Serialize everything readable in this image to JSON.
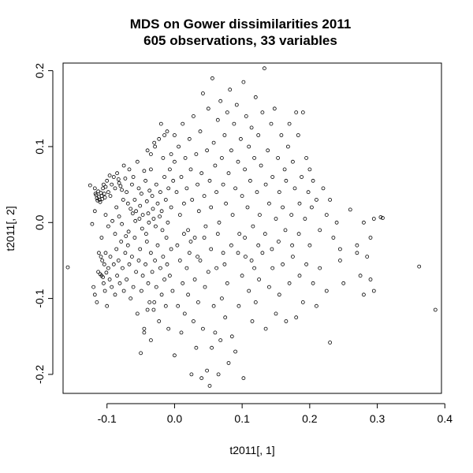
{
  "chart_data": {
    "type": "scatter",
    "title": "MDS on Gower dissimilarities 2011",
    "subtitle": "605 observations, 33 variables",
    "xlabel": "t2011[, 1]",
    "ylabel": "t2011[, 2]",
    "xlim": [
      -0.165,
      0.395
    ],
    "ylim": [
      -0.225,
      0.21
    ],
    "xticks": [
      -0.1,
      0.0,
      0.1,
      0.2,
      0.3,
      0.4
    ],
    "xtick_labels": [
      "-0.1",
      "0.0",
      "0.1",
      "0.2",
      "0.3",
      "0.4"
    ],
    "yticks": [
      -0.2,
      -0.1,
      0.0,
      0.1,
      0.2
    ],
    "ytick_labels": [
      "-0.2",
      "-0.1",
      "0.0",
      "0.1",
      "0.2"
    ],
    "grid": false,
    "legend": "none",
    "points": [
      [
        -0.158,
        -0.059
      ],
      [
        -0.125,
        0.049
      ],
      [
        -0.122,
        -0.002
      ],
      [
        -0.118,
        0.045
      ],
      [
        -0.117,
        0.038
      ],
      [
        -0.116,
        0.036
      ],
      [
        -0.115,
        0.032
      ],
      [
        -0.114,
        0.029
      ],
      [
        -0.113,
        0.041
      ],
      [
        -0.112,
        0.034
      ],
      [
        -0.111,
        0.03
      ],
      [
        -0.11,
        0.027
      ],
      [
        -0.109,
        0.039
      ],
      [
        -0.108,
        0.035
      ],
      [
        -0.107,
        0.031
      ],
      [
        -0.106,
        0.045
      ],
      [
        -0.105,
        0.05
      ],
      [
        -0.104,
        0.038
      ],
      [
        -0.103,
        0.033
      ],
      [
        -0.102,
        0.047
      ],
      [
        -0.1,
        0.055
      ],
      [
        -0.098,
        0.04
      ],
      [
        -0.096,
        0.062
      ],
      [
        -0.095,
        0.035
      ],
      [
        -0.093,
        0.05
      ],
      [
        -0.09,
        0.06
      ],
      [
        -0.088,
        0.045
      ],
      [
        -0.086,
        0.02
      ],
      [
        -0.085,
        0.065
      ],
      [
        -0.083,
        0.057
      ],
      [
        -0.082,
        0.052
      ],
      [
        -0.08,
        0.048
      ],
      [
        -0.078,
        0.043
      ],
      [
        -0.076,
        0.03
      ],
      [
        -0.075,
        0.075
      ],
      [
        -0.073,
        0.058
      ],
      [
        -0.071,
        0.04
      ],
      [
        -0.069,
        0.025
      ],
      [
        -0.067,
        0.07
      ],
      [
        -0.065,
        0.018
      ],
      [
        -0.063,
        0.05
      ],
      [
        -0.061,
        0.06
      ],
      [
        -0.059,
        0.03
      ],
      [
        -0.057,
        0.015
      ],
      [
        -0.055,
        0.08
      ],
      [
        -0.053,
        0.045
      ],
      [
        -0.051,
        0.022
      ],
      [
        -0.049,
        0.038
      ],
      [
        -0.047,
        0.01
      ],
      [
        -0.045,
        0.068
      ],
      [
        -0.043,
        0.055
      ],
      [
        -0.041,
        0.028
      ],
      [
        -0.039,
        0.012
      ],
      [
        -0.037,
        0.042
      ],
      [
        -0.035,
        0.09
      ],
      [
        -0.033,
        0.035
      ],
      [
        -0.031,
        0.005
      ],
      [
        -0.029,
        0.1
      ],
      [
        -0.027,
        0.05
      ],
      [
        -0.025,
        0.025
      ],
      [
        -0.023,
        0.11
      ],
      [
        -0.021,
        0.04
      ],
      [
        -0.019,
        0.015
      ],
      [
        -0.017,
        0.085
      ],
      [
        -0.015,
        0.06
      ],
      [
        -0.013,
        0.03
      ],
      [
        -0.011,
        0.12
      ],
      [
        -0.009,
        0.045
      ],
      [
        -0.007,
        0.07
      ],
      [
        -0.005,
        0.02
      ],
      [
        -0.12,
        -0.085
      ],
      [
        -0.118,
        -0.095
      ],
      [
        -0.115,
        -0.105
      ],
      [
        -0.113,
        -0.065
      ],
      [
        -0.112,
        -0.04
      ],
      [
        -0.11,
        -0.068
      ],
      [
        -0.109,
        -0.045
      ],
      [
        -0.108,
        -0.07
      ],
      [
        -0.107,
        -0.05
      ],
      [
        -0.106,
        -0.072
      ],
      [
        -0.105,
        -0.08
      ],
      [
        -0.104,
        -0.055
      ],
      [
        -0.103,
        -0.09
      ],
      [
        -0.102,
        -0.04
      ],
      [
        -0.101,
        -0.066
      ],
      [
        -0.1,
        -0.11
      ],
      [
        -0.098,
        -0.06
      ],
      [
        -0.096,
        -0.075
      ],
      [
        -0.095,
        -0.045
      ],
      [
        -0.093,
        -0.085
      ],
      [
        -0.09,
        -0.055
      ],
      [
        -0.088,
        -0.095
      ],
      [
        -0.086,
        -0.035
      ],
      [
        -0.085,
        -0.07
      ],
      [
        -0.083,
        -0.05
      ],
      [
        -0.081,
        -0.08
      ],
      [
        -0.079,
        -0.025
      ],
      [
        -0.077,
        -0.06
      ],
      [
        -0.075,
        -0.09
      ],
      [
        -0.073,
        -0.04
      ],
      [
        -0.071,
        -0.075
      ],
      [
        -0.069,
        -0.03
      ],
      [
        -0.067,
        -0.055
      ],
      [
        -0.065,
        -0.1
      ],
      [
        -0.063,
        -0.045
      ],
      [
        -0.061,
        -0.085
      ],
      [
        -0.059,
        -0.02
      ],
      [
        -0.057,
        -0.065
      ],
      [
        -0.055,
        -0.12
      ],
      [
        -0.053,
        -0.05
      ],
      [
        -0.051,
        -0.035
      ],
      [
        -0.049,
        -0.09
      ],
      [
        -0.047,
        -0.07
      ],
      [
        -0.045,
        -0.145
      ],
      [
        -0.043,
        -0.055
      ],
      [
        -0.041,
        -0.025
      ],
      [
        -0.039,
        -0.08
      ],
      [
        -0.037,
        -0.105
      ],
      [
        -0.035,
        -0.04
      ],
      [
        -0.033,
        -0.065
      ],
      [
        -0.031,
        -0.115
      ],
      [
        -0.029,
        -0.05
      ],
      [
        -0.027,
        -0.085
      ],
      [
        -0.025,
        -0.03
      ],
      [
        -0.023,
        -0.13
      ],
      [
        -0.021,
        -0.06
      ],
      [
        -0.019,
        -0.095
      ],
      [
        -0.017,
        -0.045
      ],
      [
        -0.015,
        -0.075
      ],
      [
        -0.013,
        -0.11
      ],
      [
        -0.011,
        -0.055
      ],
      [
        -0.009,
        -0.14
      ],
      [
        -0.007,
        -0.07
      ],
      [
        -0.005,
        -0.035
      ],
      [
        -0.003,
        -0.09
      ],
      [
        -0.05,
        -0.172
      ],
      [
        -0.045,
        -0.14
      ],
      [
        -0.04,
        -0.115
      ],
      [
        -0.035,
        -0.155
      ],
      [
        -0.03,
        -0.105
      ],
      [
        0.0,
        -0.175
      ],
      [
        0.005,
        -0.11
      ],
      [
        0.01,
        -0.145
      ],
      [
        0.012,
        -0.08
      ],
      [
        0.015,
        -0.12
      ],
      [
        0.018,
        -0.06
      ],
      [
        0.02,
        -0.095
      ],
      [
        0.022,
        -0.04
      ],
      [
        0.025,
        -0.2
      ],
      [
        0.028,
        -0.13
      ],
      [
        0.03,
        -0.075
      ],
      [
        0.032,
        -0.165
      ],
      [
        0.035,
        -0.105
      ],
      [
        0.038,
        -0.05
      ],
      [
        0.04,
        -0.205
      ],
      [
        0.042,
        -0.14
      ],
      [
        0.045,
        -0.085
      ],
      [
        0.048,
        -0.195
      ],
      [
        0.05,
        -0.065
      ],
      [
        0.052,
        -0.215
      ],
      [
        0.055,
        -0.165
      ],
      [
        0.058,
        -0.11
      ],
      [
        0.06,
        -0.145
      ],
      [
        0.062,
        -0.06
      ],
      [
        0.065,
        -0.2
      ],
      [
        0.068,
        -0.155
      ],
      [
        0.07,
        -0.1
      ],
      [
        0.072,
        -0.04
      ],
      [
        0.075,
        -0.125
      ],
      [
        0.078,
        -0.08
      ],
      [
        0.08,
        -0.185
      ],
      [
        0.085,
        -0.15
      ],
      [
        0.09,
        -0.17
      ],
      [
        0.095,
        -0.11
      ],
      [
        0.1,
        -0.07
      ],
      [
        0.102,
        -0.205
      ],
      [
        0.105,
        -0.045
      ],
      [
        0.11,
        -0.09
      ],
      [
        0.115,
        -0.13
      ],
      [
        0.118,
        -0.06
      ],
      [
        0.12,
        -0.105
      ],
      [
        0.125,
        -0.075
      ],
      [
        0.13,
        -0.04
      ],
      [
        0.135,
        -0.14
      ],
      [
        0.14,
        -0.085
      ],
      [
        0.145,
        -0.06
      ],
      [
        0.15,
        -0.12
      ],
      [
        0.155,
        -0.095
      ],
      [
        0.16,
        -0.055
      ],
      [
        0.165,
        -0.13
      ],
      [
        0.17,
        -0.08
      ],
      [
        0.175,
        -0.045
      ],
      [
        0.18,
        -0.125
      ],
      [
        0.185,
        -0.07
      ],
      [
        0.19,
        -0.105
      ],
      [
        0.195,
        -0.055
      ],
      [
        0.2,
        -0.03
      ],
      [
        0.205,
        -0.08
      ],
      [
        0.21,
        -0.11
      ],
      [
        0.215,
        -0.06
      ],
      [
        0.225,
        -0.09
      ],
      [
        0.23,
        -0.158
      ],
      [
        0.245,
        -0.05
      ],
      [
        0.25,
        -0.08
      ],
      [
        0.27,
        -0.04
      ],
      [
        0.275,
        -0.07
      ],
      [
        0.28,
        -0.095
      ],
      [
        0.285,
        -0.045
      ],
      [
        0.29,
        -0.075
      ],
      [
        0.295,
        -0.09
      ],
      [
        0.362,
        -0.058
      ],
      [
        0.386,
        -0.115
      ],
      [
        0.0,
        0.08
      ],
      [
        0.003,
        0.04
      ],
      [
        0.006,
        0.1
      ],
      [
        0.008,
        0.01
      ],
      [
        0.01,
        0.06
      ],
      [
        0.012,
        0.13
      ],
      [
        0.014,
        0.025
      ],
      [
        0.016,
        0.085
      ],
      [
        0.018,
        0.045
      ],
      [
        0.02,
        -0.01
      ],
      [
        0.022,
        0.11
      ],
      [
        0.024,
        0.07
      ],
      [
        0.026,
        0.03
      ],
      [
        0.028,
        0.14
      ],
      [
        0.03,
        -0.02
      ],
      [
        0.032,
        0.09
      ],
      [
        0.034,
        0.05
      ],
      [
        0.036,
        0.015
      ],
      [
        0.038,
        0.12
      ],
      [
        0.04,
        0.065
      ],
      [
        0.042,
        0.17
      ],
      [
        0.044,
        0.035
      ],
      [
        0.046,
        -0.005
      ],
      [
        0.048,
        0.095
      ],
      [
        0.05,
        0.15
      ],
      [
        0.052,
        0.055
      ],
      [
        0.054,
        0.02
      ],
      [
        0.056,
        0.19
      ],
      [
        0.058,
        0.105
      ],
      [
        0.06,
        0.075
      ],
      [
        0.062,
        0.04
      ],
      [
        0.064,
        0.135
      ],
      [
        0.066,
        0.0
      ],
      [
        0.068,
        0.16
      ],
      [
        0.07,
        0.085
      ],
      [
        0.072,
        0.05
      ],
      [
        0.074,
        0.115
      ],
      [
        0.076,
        0.025
      ],
      [
        0.078,
        0.145
      ],
      [
        0.08,
        0.065
      ],
      [
        0.082,
        0.175
      ],
      [
        0.084,
        0.095
      ],
      [
        0.086,
        0.01
      ],
      [
        0.088,
        0.13
      ],
      [
        0.09,
        0.045
      ],
      [
        0.092,
        0.155
      ],
      [
        0.094,
        0.08
      ],
      [
        0.096,
        -0.015
      ],
      [
        0.098,
        0.11
      ],
      [
        0.1,
        0.035
      ],
      [
        0.102,
        0.185
      ],
      [
        0.104,
        0.07
      ],
      [
        0.106,
        0.14
      ],
      [
        0.108,
        0.02
      ],
      [
        0.11,
        0.1
      ],
      [
        0.112,
        0.055
      ],
      [
        0.114,
        0.125
      ],
      [
        0.116,
        -0.005
      ],
      [
        0.118,
        0.085
      ],
      [
        0.12,
        0.165
      ],
      [
        0.122,
        0.04
      ],
      [
        0.124,
        0.115
      ],
      [
        0.126,
        0.01
      ],
      [
        0.128,
        0.075
      ],
      [
        0.13,
        0.145
      ],
      [
        0.133,
        0.203
      ],
      [
        0.135,
        0.05
      ],
      [
        0.138,
        0.095
      ],
      [
        0.14,
        0.025
      ],
      [
        0.143,
        0.13
      ],
      [
        0.145,
        0.06
      ],
      [
        0.148,
        0.15
      ],
      [
        0.15,
        0.005
      ],
      [
        0.153,
        0.085
      ],
      [
        0.155,
        0.04
      ],
      [
        0.158,
        0.115
      ],
      [
        0.16,
        0.02
      ],
      [
        0.163,
        0.07
      ],
      [
        0.165,
        0.055
      ],
      [
        0.168,
        0.1
      ],
      [
        0.17,
        0.13
      ],
      [
        0.173,
        0.01
      ],
      [
        0.175,
        0.08
      ],
      [
        0.178,
        0.045
      ],
      [
        0.18,
        0.145
      ],
      [
        0.183,
        0.115
      ],
      [
        0.185,
        0.025
      ],
      [
        0.188,
        0.06
      ],
      [
        0.19,
        0.145
      ],
      [
        0.193,
        0.005
      ],
      [
        0.195,
        0.085
      ],
      [
        0.198,
        0.04
      ],
      [
        0.2,
        0.07
      ],
      [
        0.203,
        0.02
      ],
      [
        0.205,
        0.055
      ],
      [
        0.21,
        0.03
      ],
      [
        0.215,
        -0.01
      ],
      [
        0.22,
        0.045
      ],
      [
        0.225,
        0.01
      ],
      [
        0.23,
        0.03
      ],
      [
        0.235,
        -0.02
      ],
      [
        0.24,
        0.0
      ],
      [
        0.245,
        -0.035
      ],
      [
        0.26,
        0.017
      ],
      [
        0.27,
        -0.03
      ],
      [
        0.28,
        0.0
      ],
      [
        0.29,
        -0.02
      ],
      [
        0.295,
        0.005
      ],
      [
        0.305,
        0.007
      ],
      [
        0.308,
        0.006
      ],
      [
        -0.04,
        0.095
      ],
      [
        -0.035,
        0.07
      ],
      [
        -0.03,
        0.105
      ],
      [
        -0.02,
        0.13
      ],
      [
        -0.015,
        0.115
      ],
      [
        -0.01,
        0.0
      ],
      [
        -0.005,
        0.09
      ],
      [
        0.0,
        0.115
      ],
      [
        -0.002,
        0.055
      ],
      [
        -0.018,
        -0.01
      ],
      [
        -0.028,
        -0.005
      ],
      [
        -0.038,
        0.0
      ],
      [
        -0.048,
        -0.008
      ],
      [
        -0.058,
        0.002
      ],
      [
        -0.068,
        -0.012
      ],
      [
        -0.078,
        -0.002
      ],
      [
        -0.088,
        -0.015
      ],
      [
        -0.098,
        -0.005
      ],
      [
        -0.108,
        -0.02
      ],
      [
        -0.118,
        0.015
      ],
      [
        -0.102,
        0.01
      ],
      [
        -0.092,
        0.002
      ],
      [
        -0.082,
        0.008
      ],
      [
        -0.072,
        -0.018
      ],
      [
        -0.062,
        0.012
      ],
      [
        -0.052,
        0.005
      ],
      [
        -0.042,
        -0.015
      ],
      [
        -0.032,
        0.018
      ],
      [
        -0.022,
        0.008
      ],
      [
        -0.012,
        -0.02
      ],
      [
        0.004,
        -0.03
      ],
      [
        0.008,
        -0.05
      ],
      [
        0.014,
        -0.015
      ],
      [
        0.024,
        -0.025
      ],
      [
        0.034,
        -0.045
      ],
      [
        0.044,
        -0.02
      ],
      [
        0.054,
        -0.035
      ],
      [
        0.064,
        -0.015
      ],
      [
        0.074,
        -0.055
      ],
      [
        0.084,
        -0.03
      ],
      [
        0.094,
        -0.04
      ],
      [
        0.104,
        -0.02
      ],
      [
        0.114,
        -0.05
      ],
      [
        0.124,
        -0.03
      ],
      [
        0.134,
        -0.015
      ],
      [
        0.144,
        -0.035
      ],
      [
        0.154,
        -0.025
      ],
      [
        0.164,
        -0.01
      ],
      [
        0.174,
        -0.03
      ],
      [
        0.184,
        -0.015
      ]
    ]
  }
}
